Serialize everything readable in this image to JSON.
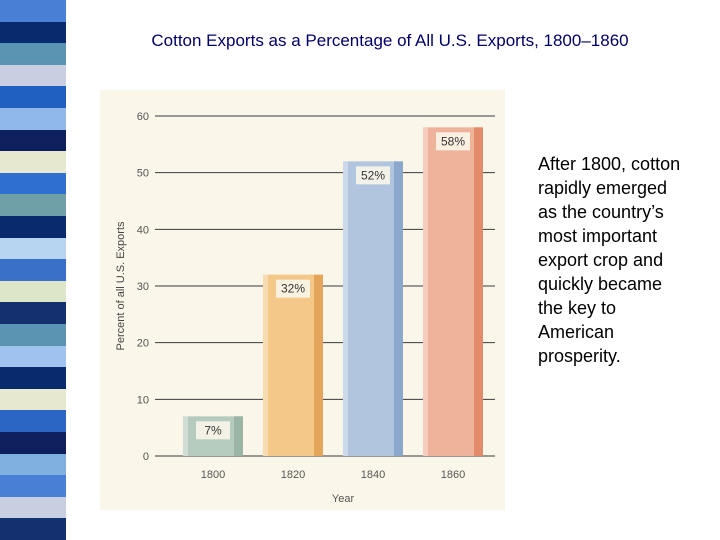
{
  "slide": {
    "title": "Cotton Exports as a Percentage of All U.S. Exports, 1800–1860",
    "side_text": "After 1800, cotton rapidly emerged as the country’s most important export crop and quickly became the key to American prosperity.",
    "strip_colors": [
      "#4a7fd6",
      "#0a2a6e",
      "#5b93b3",
      "#c8cfe0",
      "#1f5fbf",
      "#8fb7e8",
      "#0d1f5c",
      "#e6e8d0",
      "#2f6fd0",
      "#6fa0a8",
      "#0a2a6e",
      "#b7d4f0",
      "#3a70c8",
      "#dde6c8",
      "#14306e",
      "#5b93b3",
      "#9fc3ee",
      "#0a2a6e",
      "#e6e8d0",
      "#2b66c4",
      "#0d1f5c",
      "#7fb0e0",
      "#4a7fd6",
      "#c8cfe0",
      "#14306e"
    ]
  },
  "chart_data": {
    "type": "bar",
    "categories": [
      "1800",
      "1820",
      "1840",
      "1860"
    ],
    "values": [
      7,
      32,
      52,
      58
    ],
    "data_labels": [
      "7%",
      "32%",
      "52%",
      "58%"
    ],
    "bar_colors": [
      "#b5cbbd",
      "#f3c888",
      "#b1c5df",
      "#efb39c"
    ],
    "bar_shade_colors": [
      "#9bb5a5",
      "#e4a65a",
      "#8ca7cc",
      "#e38a6b"
    ],
    "background_color": "#fbf6ea",
    "ylabel": "Percent of all U.S. Exports",
    "xlabel": "Year",
    "ylim": [
      0,
      60
    ],
    "yticks": [
      0,
      10,
      20,
      30,
      40,
      50,
      60
    ],
    "ytick_labels": [
      "0",
      "10",
      "20",
      "30",
      "40",
      "50",
      "60"
    ],
    "grid": true
  }
}
